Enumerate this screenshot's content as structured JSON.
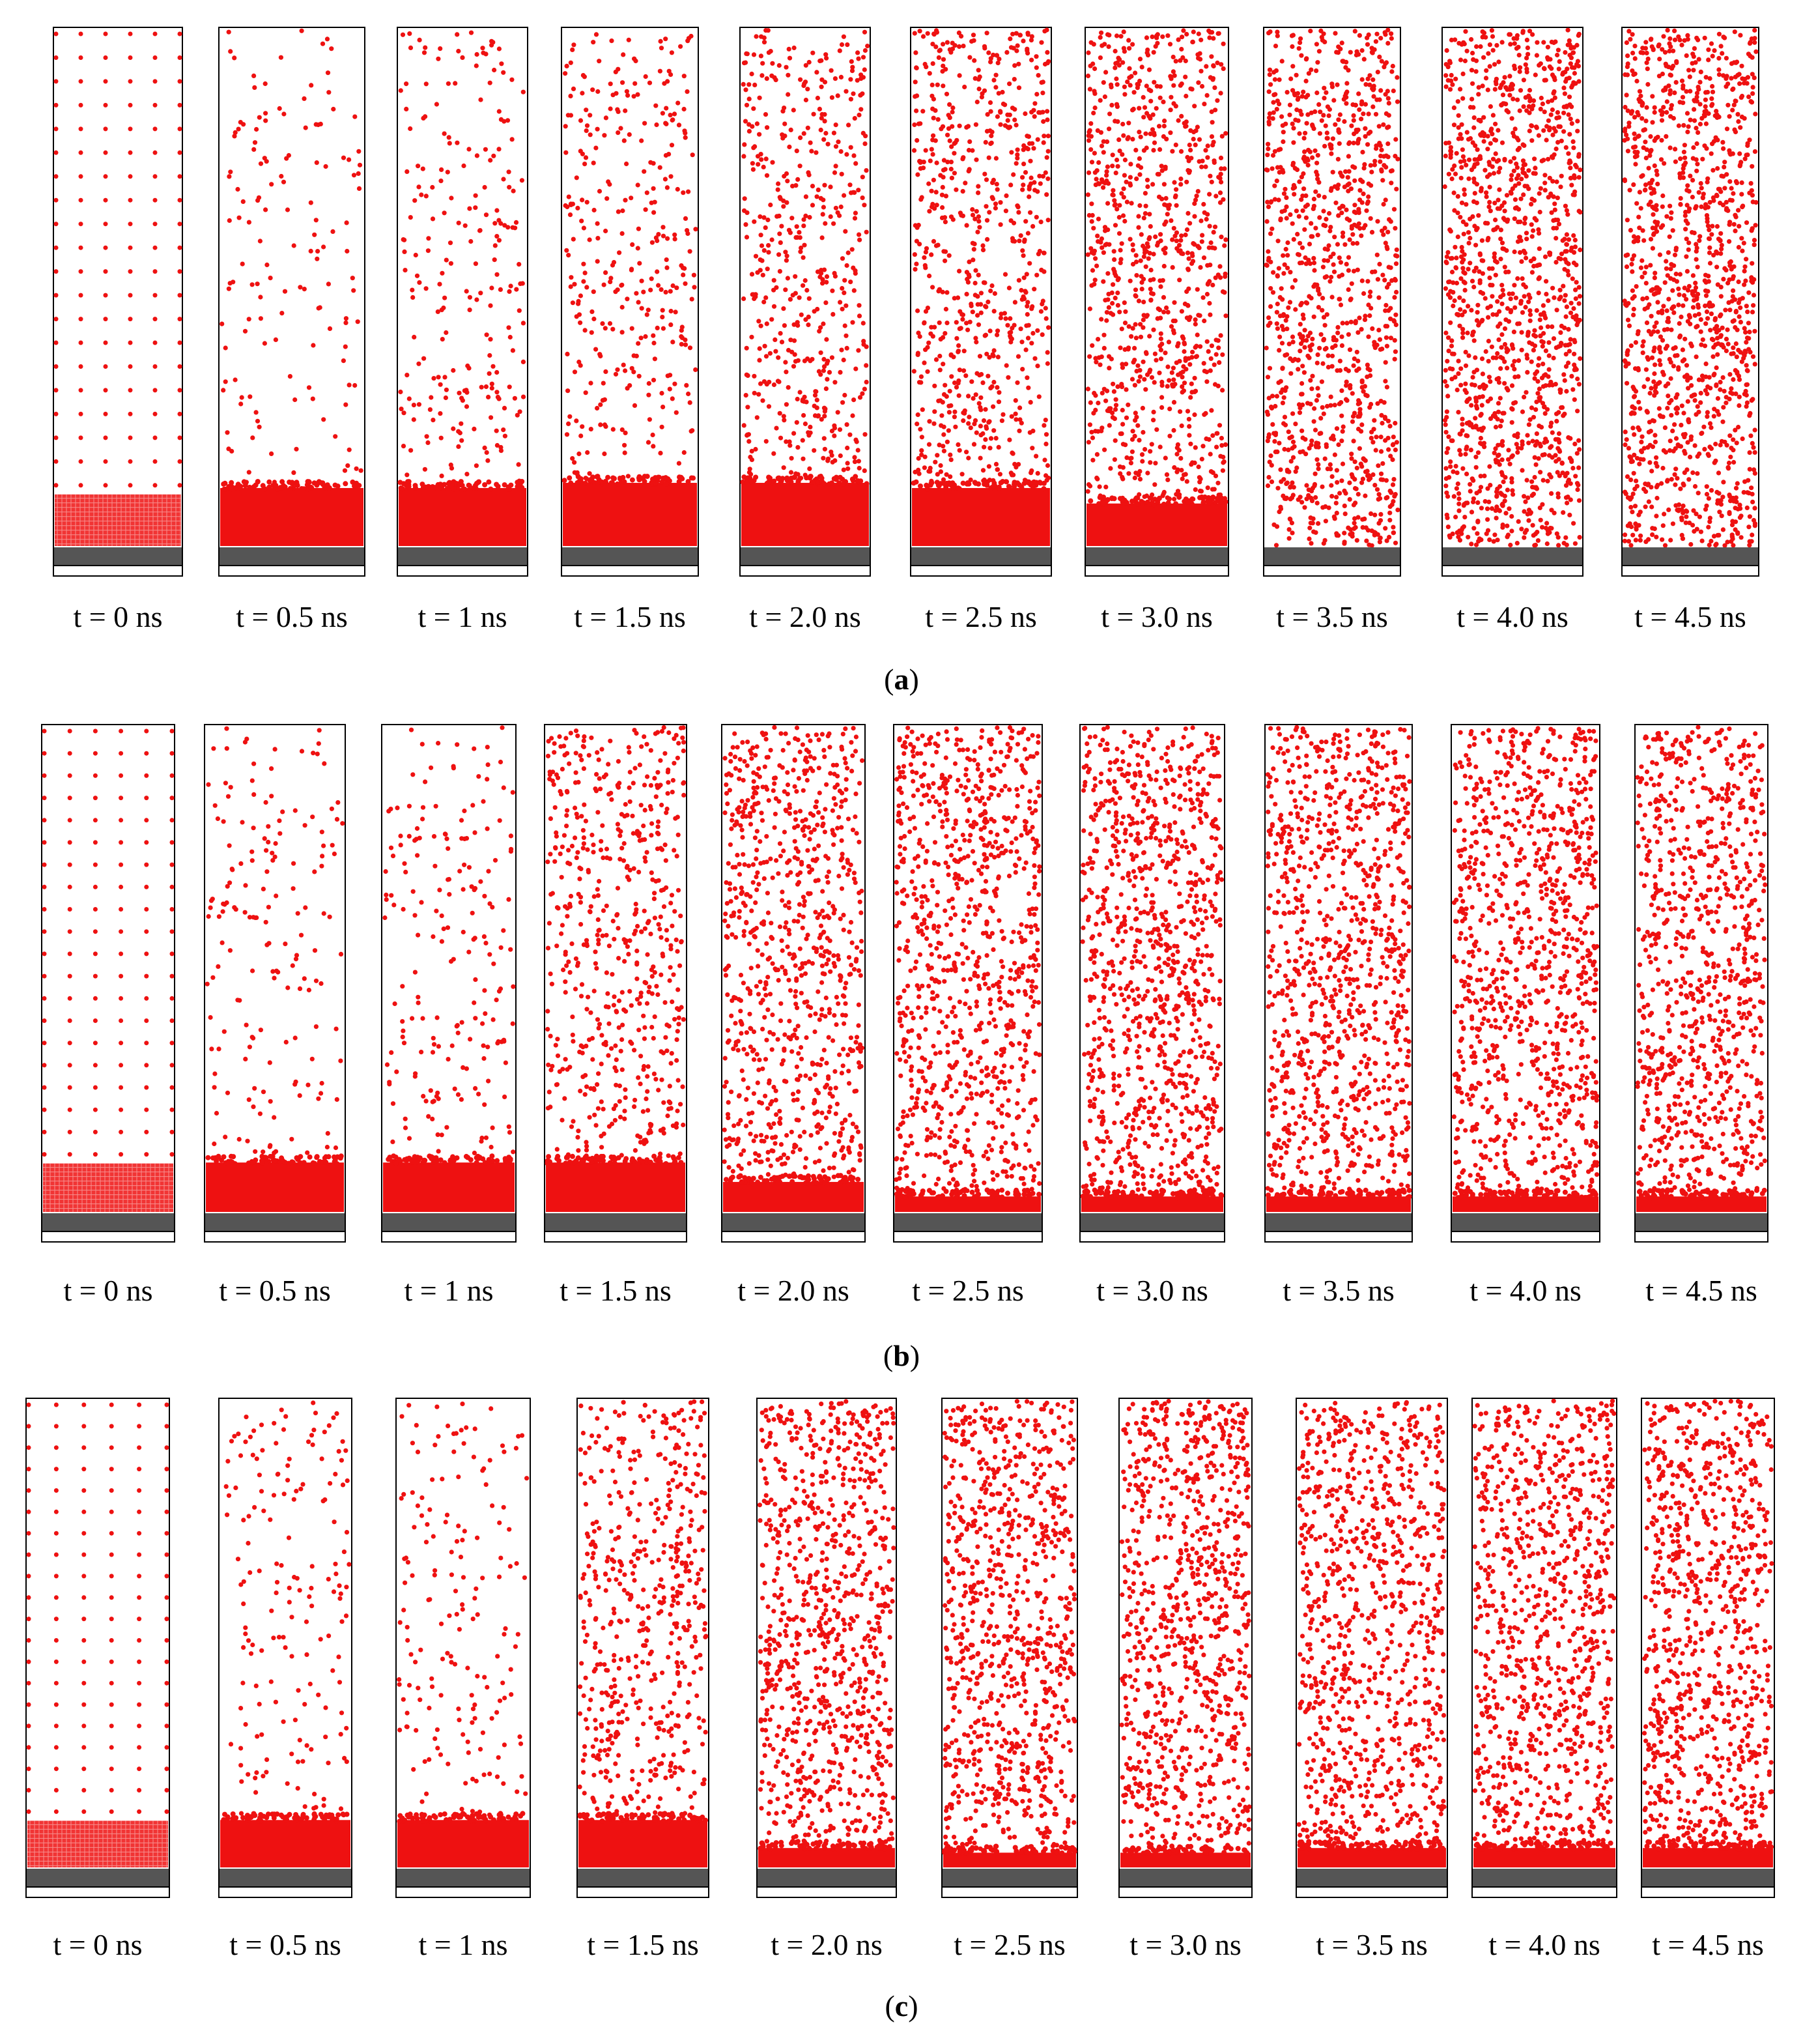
{
  "figure": {
    "description_colors": {
      "atom_color": "#ee1111",
      "substrate_color": "#555555",
      "frame_color": "#000000",
      "background": "#ffffff"
    },
    "panels": [
      {
        "id": "a",
        "caption": "(a)",
        "caption_letter": "a",
        "snapshots": [
          {
            "label": "t = 0 ns",
            "time_ns": 0,
            "evaporated_fraction": 0.0,
            "film_fraction": 0.1
          },
          {
            "label": "t = 0.5 ns",
            "time_ns": 0.5,
            "evaporated_fraction": 0.1,
            "film_fraction": 0.12
          },
          {
            "label": "t = 1 ns",
            "time_ns": 1,
            "evaporated_fraction": 0.16,
            "film_fraction": 0.12
          },
          {
            "label": "t = 1.5 ns",
            "time_ns": 1.5,
            "evaporated_fraction": 0.24,
            "film_fraction": 0.13
          },
          {
            "label": "t = 2.0 ns",
            "time_ns": 2.0,
            "evaporated_fraction": 0.36,
            "film_fraction": 0.13
          },
          {
            "label": "t = 2.5 ns",
            "time_ns": 2.5,
            "evaporated_fraction": 0.5,
            "film_fraction": 0.12
          },
          {
            "label": "t = 3.0 ns",
            "time_ns": 3.0,
            "evaporated_fraction": 0.64,
            "film_fraction": 0.09
          },
          {
            "label": "t = 3.5 ns",
            "time_ns": 3.5,
            "evaporated_fraction": 0.76,
            "film_fraction": 0.0
          },
          {
            "label": "t = 4.0 ns",
            "time_ns": 4.0,
            "evaporated_fraction": 0.92,
            "film_fraction": 0.0
          },
          {
            "label": "t = 4.5 ns",
            "time_ns": 4.5,
            "evaporated_fraction": 0.88,
            "film_fraction": 0.0
          }
        ]
      },
      {
        "id": "b",
        "caption": "(b)",
        "caption_letter": "b",
        "snapshots": [
          {
            "label": "t = 0 ns",
            "time_ns": 0,
            "evaporated_fraction": 0.0,
            "film_fraction": 0.1
          },
          {
            "label": "t = 0.5 ns",
            "time_ns": 0.5,
            "evaporated_fraction": 0.12,
            "film_fraction": 0.11
          },
          {
            "label": "t = 1 ns",
            "time_ns": 1,
            "evaporated_fraction": 0.14,
            "film_fraction": 0.11
          },
          {
            "label": "t = 1.5 ns",
            "time_ns": 1.5,
            "evaporated_fraction": 0.4,
            "film_fraction": 0.11
          },
          {
            "label": "t = 2.0 ns",
            "time_ns": 2.0,
            "evaporated_fraction": 0.58,
            "film_fraction": 0.07
          },
          {
            "label": "t = 2.5 ns",
            "time_ns": 2.5,
            "evaporated_fraction": 0.66,
            "film_fraction": 0.04
          },
          {
            "label": "t = 3.0 ns",
            "time_ns": 3.0,
            "evaporated_fraction": 0.7,
            "film_fraction": 0.04
          },
          {
            "label": "t = 3.5 ns",
            "time_ns": 3.5,
            "evaporated_fraction": 0.7,
            "film_fraction": 0.04
          },
          {
            "label": "t = 4.0 ns",
            "time_ns": 4.0,
            "evaporated_fraction": 0.7,
            "film_fraction": 0.04
          },
          {
            "label": "t = 4.5 ns",
            "time_ns": 4.5,
            "evaporated_fraction": 0.62,
            "film_fraction": 0.04
          }
        ]
      },
      {
        "id": "c",
        "caption": "(c)",
        "caption_letter": "c",
        "snapshots": [
          {
            "label": "t = 0 ns",
            "time_ns": 0,
            "evaporated_fraction": 0.0,
            "film_fraction": 0.1
          },
          {
            "label": "t = 0.5 ns",
            "time_ns": 0.5,
            "evaporated_fraction": 0.12,
            "film_fraction": 0.11
          },
          {
            "label": "t = 1 ns",
            "time_ns": 1,
            "evaporated_fraction": 0.12,
            "film_fraction": 0.11
          },
          {
            "label": "t = 1.5 ns",
            "time_ns": 1.5,
            "evaporated_fraction": 0.38,
            "film_fraction": 0.11
          },
          {
            "label": "t = 2.0 ns",
            "time_ns": 2.0,
            "evaporated_fraction": 0.62,
            "film_fraction": 0.05
          },
          {
            "label": "t = 2.5 ns",
            "time_ns": 2.5,
            "evaporated_fraction": 0.62,
            "film_fraction": 0.04
          },
          {
            "label": "t = 3.0 ns",
            "time_ns": 3.0,
            "evaporated_fraction": 0.62,
            "film_fraction": 0.04
          },
          {
            "label": "t = 3.5 ns",
            "time_ns": 3.5,
            "evaporated_fraction": 0.64,
            "film_fraction": 0.05
          },
          {
            "label": "t = 4.0 ns",
            "time_ns": 4.0,
            "evaporated_fraction": 0.64,
            "film_fraction": 0.05
          },
          {
            "label": "t = 4.5 ns",
            "time_ns": 4.5,
            "evaporated_fraction": 0.62,
            "film_fraction": 0.05
          }
        ]
      }
    ]
  }
}
